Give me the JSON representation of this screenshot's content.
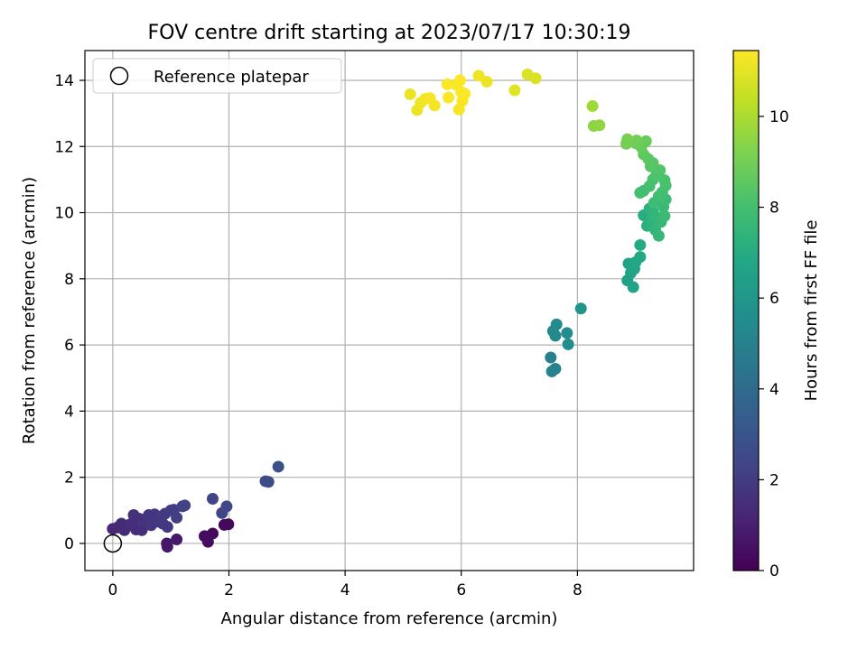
{
  "chart_data": {
    "type": "scatter",
    "title": "FOV centre drift starting at 2023/07/17 10:30:19",
    "xlabel": "Angular distance from reference (arcmin)",
    "ylabel": "Rotation from reference (arcmin)",
    "xlim": [
      -0.48,
      10.0
    ],
    "ylim": [
      -0.82,
      14.9
    ],
    "xticks": [
      0,
      2,
      4,
      6,
      8
    ],
    "yticks": [
      0,
      2,
      4,
      6,
      8,
      10,
      12,
      14
    ],
    "grid": true,
    "legend": {
      "placement": "top-left",
      "entries": [
        "Reference platepar"
      ]
    },
    "reference_point": {
      "x": 0,
      "y": 0,
      "label": "Reference platepar"
    },
    "colorbar": {
      "label": "Hours from first FF file",
      "colormap": "viridis",
      "range": [
        0,
        11.45
      ],
      "ticks": [
        0,
        2,
        4,
        6,
        8,
        10
      ]
    },
    "points": [
      {
        "x": 1.72,
        "y": 0.3,
        "t": 0.3
      },
      {
        "x": 1.58,
        "y": 0.22,
        "t": 0.35
      },
      {
        "x": 1.64,
        "y": 0.05,
        "t": 0.4
      },
      {
        "x": 1.92,
        "y": 0.56,
        "t": 0.2
      },
      {
        "x": 1.99,
        "y": 0.58,
        "t": 0.25
      },
      {
        "x": 0.93,
        "y": 0.0,
        "t": 0.65
      },
      {
        "x": 0.94,
        "y": -0.1,
        "t": 0.7
      },
      {
        "x": 1.1,
        "y": 0.12,
        "t": 0.75
      },
      {
        "x": 0.0,
        "y": 0.44,
        "t": 1.2
      },
      {
        "x": 0.08,
        "y": 0.48,
        "t": 1.3
      },
      {
        "x": 0.15,
        "y": 0.6,
        "t": 1.4
      },
      {
        "x": 0.2,
        "y": 0.4,
        "t": 1.35
      },
      {
        "x": 0.3,
        "y": 0.58,
        "t": 1.5
      },
      {
        "x": 0.36,
        "y": 0.86,
        "t": 1.6
      },
      {
        "x": 0.4,
        "y": 0.42,
        "t": 1.45
      },
      {
        "x": 0.45,
        "y": 0.75,
        "t": 1.55
      },
      {
        "x": 0.52,
        "y": 0.72,
        "t": 1.6
      },
      {
        "x": 0.5,
        "y": 0.4,
        "t": 1.5
      },
      {
        "x": 0.6,
        "y": 0.62,
        "t": 1.65
      },
      {
        "x": 0.66,
        "y": 0.55,
        "t": 1.7
      },
      {
        "x": 0.72,
        "y": 0.88,
        "t": 1.75
      },
      {
        "x": 0.76,
        "y": 0.66,
        "t": 1.8
      },
      {
        "x": 0.82,
        "y": 0.8,
        "t": 1.85
      },
      {
        "x": 0.86,
        "y": 0.6,
        "t": 1.9
      },
      {
        "x": 0.9,
        "y": 0.9,
        "t": 1.95
      },
      {
        "x": 0.94,
        "y": 0.5,
        "t": 1.8
      },
      {
        "x": 1.0,
        "y": 1.0,
        "t": 2.0
      },
      {
        "x": 1.05,
        "y": 1.02,
        "t": 2.05
      },
      {
        "x": 1.1,
        "y": 0.78,
        "t": 2.1
      },
      {
        "x": 1.2,
        "y": 1.12,
        "t": 2.2
      },
      {
        "x": 1.24,
        "y": 1.15,
        "t": 2.25
      },
      {
        "x": 0.62,
        "y": 0.86,
        "t": 1.7
      },
      {
        "x": 1.72,
        "y": 1.35,
        "t": 2.3
      },
      {
        "x": 1.88,
        "y": 0.92,
        "t": 2.35
      },
      {
        "x": 1.96,
        "y": 1.12,
        "t": 2.4
      },
      {
        "x": 2.63,
        "y": 1.88,
        "t": 2.6
      },
      {
        "x": 2.68,
        "y": 1.86,
        "t": 2.65
      },
      {
        "x": 2.85,
        "y": 2.32,
        "t": 2.8
      },
      {
        "x": 7.54,
        "y": 5.62,
        "t": 5.0
      },
      {
        "x": 7.56,
        "y": 5.2,
        "t": 5.05
      },
      {
        "x": 7.62,
        "y": 5.28,
        "t": 5.1
      },
      {
        "x": 7.58,
        "y": 6.42,
        "t": 5.3
      },
      {
        "x": 7.62,
        "y": 6.28,
        "t": 5.35
      },
      {
        "x": 7.64,
        "y": 6.62,
        "t": 5.4
      },
      {
        "x": 7.82,
        "y": 6.36,
        "t": 5.55
      },
      {
        "x": 7.84,
        "y": 6.02,
        "t": 5.6
      },
      {
        "x": 8.06,
        "y": 7.1,
        "t": 5.9
      },
      {
        "x": 8.86,
        "y": 7.95,
        "t": 6.5
      },
      {
        "x": 8.88,
        "y": 8.46,
        "t": 6.55
      },
      {
        "x": 8.92,
        "y": 8.18,
        "t": 6.6
      },
      {
        "x": 8.96,
        "y": 7.75,
        "t": 6.65
      },
      {
        "x": 8.98,
        "y": 8.3,
        "t": 6.7
      },
      {
        "x": 9.0,
        "y": 8.5,
        "t": 6.75
      },
      {
        "x": 9.08,
        "y": 8.66,
        "t": 6.85
      },
      {
        "x": 9.08,
        "y": 9.02,
        "t": 6.95
      },
      {
        "x": 9.14,
        "y": 9.92,
        "t": 7.1
      },
      {
        "x": 9.2,
        "y": 9.6,
        "t": 7.2
      },
      {
        "x": 9.24,
        "y": 10.12,
        "t": 7.3
      },
      {
        "x": 9.28,
        "y": 9.78,
        "t": 7.35
      },
      {
        "x": 9.3,
        "y": 10.02,
        "t": 7.4
      },
      {
        "x": 9.34,
        "y": 9.48,
        "t": 7.45
      },
      {
        "x": 9.38,
        "y": 9.86,
        "t": 7.5
      },
      {
        "x": 9.4,
        "y": 9.3,
        "t": 7.55
      },
      {
        "x": 9.44,
        "y": 9.72,
        "t": 7.6
      },
      {
        "x": 9.48,
        "y": 10.18,
        "t": 7.65
      },
      {
        "x": 9.5,
        "y": 9.9,
        "t": 7.7
      },
      {
        "x": 9.52,
        "y": 10.4,
        "t": 7.8
      },
      {
        "x": 9.46,
        "y": 10.62,
        "t": 7.9
      },
      {
        "x": 9.4,
        "y": 10.5,
        "t": 7.95
      },
      {
        "x": 9.32,
        "y": 10.3,
        "t": 7.85
      },
      {
        "x": 9.24,
        "y": 10.8,
        "t": 8.05
      },
      {
        "x": 9.3,
        "y": 11.0,
        "t": 8.1
      },
      {
        "x": 9.14,
        "y": 10.66,
        "t": 8.0
      },
      {
        "x": 9.08,
        "y": 10.6,
        "t": 7.95
      },
      {
        "x": 9.36,
        "y": 11.14,
        "t": 8.2
      },
      {
        "x": 9.42,
        "y": 11.28,
        "t": 8.3
      },
      {
        "x": 9.5,
        "y": 10.98,
        "t": 8.15
      },
      {
        "x": 9.52,
        "y": 10.82,
        "t": 8.1
      },
      {
        "x": 9.26,
        "y": 11.4,
        "t": 8.4
      },
      {
        "x": 9.22,
        "y": 11.62,
        "t": 8.5
      },
      {
        "x": 9.14,
        "y": 11.76,
        "t": 8.6
      },
      {
        "x": 9.18,
        "y": 12.16,
        "t": 8.8
      },
      {
        "x": 9.1,
        "y": 11.98,
        "t": 8.75
      },
      {
        "x": 9.0,
        "y": 12.1,
        "t": 8.9
      },
      {
        "x": 9.02,
        "y": 12.18,
        "t": 8.95
      },
      {
        "x": 8.86,
        "y": 12.22,
        "t": 9.1
      },
      {
        "x": 8.84,
        "y": 12.08,
        "t": 9.05
      },
      {
        "x": 9.3,
        "y": 11.5,
        "t": 8.45
      },
      {
        "x": 8.28,
        "y": 12.62,
        "t": 9.5
      },
      {
        "x": 8.38,
        "y": 12.64,
        "t": 9.55
      },
      {
        "x": 8.26,
        "y": 13.22,
        "t": 9.8
      },
      {
        "x": 5.12,
        "y": 13.58,
        "t": 11.1
      },
      {
        "x": 5.24,
        "y": 13.1,
        "t": 11.15
      },
      {
        "x": 5.3,
        "y": 13.32,
        "t": 11.2
      },
      {
        "x": 5.38,
        "y": 13.44,
        "t": 11.25
      },
      {
        "x": 5.46,
        "y": 13.46,
        "t": 11.3
      },
      {
        "x": 5.54,
        "y": 13.24,
        "t": 11.3
      },
      {
        "x": 5.76,
        "y": 13.88,
        "t": 11.4
      },
      {
        "x": 5.78,
        "y": 13.48,
        "t": 11.4
      },
      {
        "x": 5.92,
        "y": 13.86,
        "t": 11.4
      },
      {
        "x": 5.96,
        "y": 13.12,
        "t": 11.35
      },
      {
        "x": 5.98,
        "y": 14.0,
        "t": 11.45
      },
      {
        "x": 6.0,
        "y": 13.64,
        "t": 11.4
      },
      {
        "x": 6.02,
        "y": 13.38,
        "t": 11.35
      },
      {
        "x": 6.06,
        "y": 13.6,
        "t": 11.4
      },
      {
        "x": 6.3,
        "y": 14.14,
        "t": 11.2
      },
      {
        "x": 6.44,
        "y": 13.96,
        "t": 11.15
      },
      {
        "x": 6.92,
        "y": 13.7,
        "t": 10.95
      },
      {
        "x": 7.14,
        "y": 14.18,
        "t": 10.85
      },
      {
        "x": 7.28,
        "y": 14.06,
        "t": 10.8
      }
    ]
  }
}
